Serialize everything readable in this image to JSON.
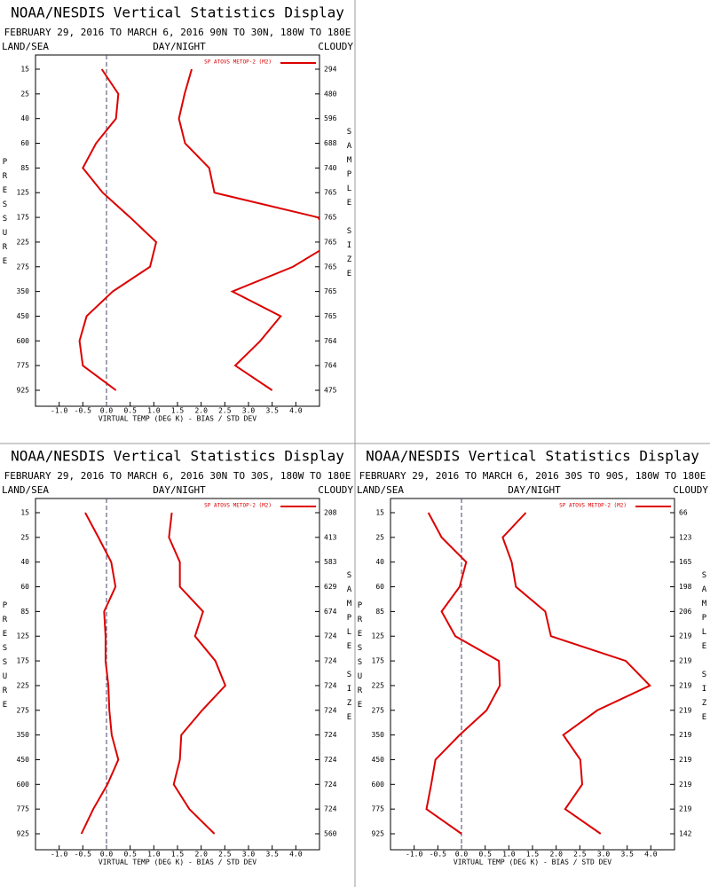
{
  "chart_data": [
    {
      "type": "line",
      "title": "NOAA/NESDIS Vertical Statistics Display",
      "subtitle": "FEBRUARY 29, 2016 TO MARCH 6, 2016 90N TO 30N, 180W TO 180E",
      "land_sea_label": "LAND/SEA",
      "day_night_label": "DAY/NIGHT",
      "cloud_label": "CLOUDY",
      "y_label": "PRESSURE",
      "y2_label": "SAMPLE SIZE",
      "x_label": "VIRTUAL TEMP (DEG K) - BIAS / STD DEV",
      "categories": [
        15,
        25,
        40,
        60,
        85,
        125,
        175,
        225,
        275,
        350,
        450,
        600,
        775,
        925
      ],
      "sample_size": [
        294,
        480,
        596,
        688,
        740,
        765,
        765,
        765,
        765,
        765,
        765,
        764,
        764,
        475
      ],
      "series": [
        {
          "name": "SP ATOVS METOP-2 (M2)",
          "color": "#dd0000",
          "values": [
            -0.1,
            0.25,
            0.2,
            -0.22,
            -0.5,
            -0.08,
            0.5,
            1.05,
            0.92,
            0.13,
            -0.42,
            -0.57,
            -0.5,
            0.2
          ]
        },
        {
          "color": "#dd0000",
          "values": [
            1.8,
            1.65,
            1.53,
            1.66,
            2.17,
            2.28,
            4.47,
            4.8,
            3.94,
            2.66,
            3.68,
            3.25,
            2.72,
            3.5
          ]
        }
      ],
      "xlim": [
        -1.5,
        4.5
      ],
      "xticks": [
        {
          "value": -1,
          "label": "-1.0"
        },
        {
          "value": -0.5,
          "label": "-0.5"
        },
        {
          "value": 0,
          "label": "0.0"
        },
        {
          "value": 0.5,
          "label": "0.5"
        },
        {
          "value": 1,
          "label": "1.0"
        },
        {
          "value": 1.5,
          "label": "1.5"
        },
        {
          "value": 2,
          "label": "2.0"
        },
        {
          "value": 2.5,
          "label": "2.5"
        },
        {
          "value": 3,
          "label": "3.0"
        },
        {
          "value": 3.5,
          "label": "3.5"
        },
        {
          "value": 4,
          "label": "4.0"
        }
      ]
    },
    {
      "type": "line",
      "title": "NOAA/NESDIS Vertical Statistics Display",
      "subtitle": "FEBRUARY 29, 2016 TO MARCH 6, 2016 30N TO 30S, 180W TO 180E",
      "land_sea_label": "LAND/SEA",
      "day_night_label": "DAY/NIGHT",
      "cloud_label": "CLOUDY",
      "y_label": "PRESSURE",
      "y2_label": "SAMPLE SIZE",
      "x_label": "VIRTUAL TEMP (DEG K) - BIAS / STD DEV",
      "categories": [
        15,
        25,
        40,
        60,
        85,
        125,
        175,
        225,
        275,
        350,
        450,
        600,
        775,
        925
      ],
      "sample_size": [
        208,
        413,
        583,
        629,
        674,
        724,
        724,
        724,
        724,
        724,
        724,
        724,
        724,
        560
      ],
      "series": [
        {
          "name": "SP ATOVS METOP-2 (M2)",
          "color": "#dd0000",
          "values": [
            -0.45,
            -0.17,
            0.1,
            0.19,
            -0.05,
            -0.02,
            -0.02,
            0.04,
            0.06,
            0.11,
            0.25,
            0.02,
            -0.28,
            -0.53
          ]
        },
        {
          "color": "#dd0000",
          "values": [
            1.38,
            1.32,
            1.55,
            1.55,
            2.04,
            1.87,
            2.3,
            2.51,
            2.02,
            1.58,
            1.55,
            1.42,
            1.75,
            2.28
          ]
        }
      ],
      "xlim": [
        -1.5,
        4.5
      ],
      "xticks": [
        {
          "value": -1,
          "label": "-1.0"
        },
        {
          "value": -0.5,
          "label": "-0.5"
        },
        {
          "value": 0,
          "label": "0.0"
        },
        {
          "value": 0.5,
          "label": "0.5"
        },
        {
          "value": 1,
          "label": "1.0"
        },
        {
          "value": 1.5,
          "label": "1.5"
        },
        {
          "value": 2,
          "label": "2.0"
        },
        {
          "value": 2.5,
          "label": "2.5"
        },
        {
          "value": 3,
          "label": "3.0"
        },
        {
          "value": 3.5,
          "label": "3.5"
        },
        {
          "value": 4,
          "label": "4.0"
        }
      ]
    },
    {
      "type": "line",
      "title": "NOAA/NESDIS Vertical Statistics Display",
      "subtitle": "FEBRUARY 29, 2016 TO MARCH 6, 2016 30S TO 90S, 180W TO 180E",
      "land_sea_label": "LAND/SEA",
      "day_night_label": "DAY/NIGHT",
      "cloud_label": "CLOUDY",
      "y_label": "PRESSURE",
      "y2_label": "SAMPLE SIZE",
      "x_label": "VIRTUAL TEMP (DEG K) - BIAS / STD DEV",
      "categories": [
        15,
        25,
        40,
        60,
        85,
        125,
        175,
        225,
        275,
        350,
        450,
        600,
        775,
        925
      ],
      "sample_size": [
        66,
        123,
        165,
        198,
        206,
        219,
        219,
        219,
        219,
        219,
        219,
        219,
        219,
        142
      ],
      "series": [
        {
          "name": "SP ATOVS METOP-2 (M2)",
          "color": "#dd0000",
          "values": [
            -0.7,
            -0.42,
            0.1,
            -0.04,
            -0.42,
            -0.13,
            0.79,
            0.81,
            0.53,
            -0.04,
            -0.55,
            -0.64,
            -0.74,
            0
          ]
        },
        {
          "color": "#dd0000",
          "values": [
            1.36,
            0.87,
            1.06,
            1.15,
            1.77,
            1.89,
            3.47,
            3.98,
            2.87,
            2.15,
            2.51,
            2.55,
            2.19,
            2.94
          ]
        }
      ],
      "xlim": [
        -1.5,
        4.5
      ],
      "xticks": [
        {
          "value": -1,
          "label": "-1.0"
        },
        {
          "value": -0.5,
          "label": "-0.5"
        },
        {
          "value": 0,
          "label": "0.0"
        },
        {
          "value": 0.5,
          "label": "0.5"
        },
        {
          "value": 1,
          "label": "1.0"
        },
        {
          "value": 1.5,
          "label": "1.5"
        },
        {
          "value": 2,
          "label": "2.0"
        },
        {
          "value": 2.5,
          "label": "2.5"
        },
        {
          "value": 3,
          "label": "3.0"
        },
        {
          "value": 3.5,
          "label": "3.5"
        },
        {
          "value": 4,
          "label": "4.0"
        }
      ]
    }
  ]
}
